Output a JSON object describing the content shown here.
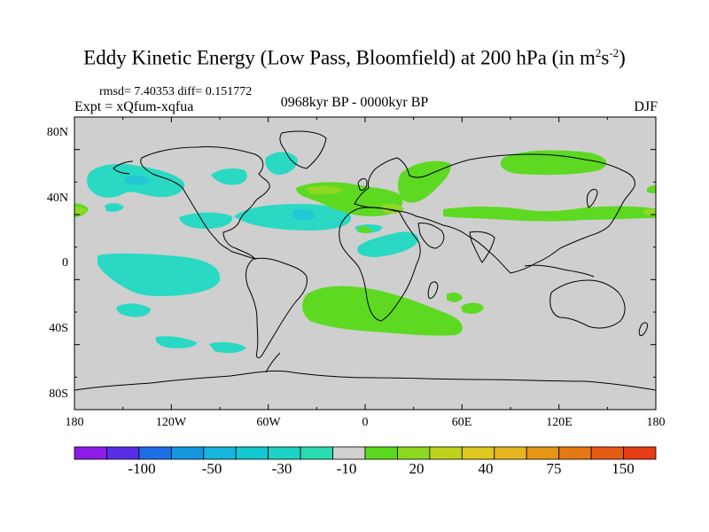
{
  "title": {
    "main": "Eddy Kinetic Energy (Low Pass, Bloomfield) at 200 hPa (in m",
    "sup1": "2",
    "mid": "s",
    "sup2": "-2",
    "end": ")"
  },
  "subtitle": {
    "stats": "rmsd= 7.40353 diff= 0.151772",
    "experiment": "Expt = xQfum-xqfua",
    "period": "0968kyr BP - 0000kyr BP",
    "season": "DJF"
  },
  "axes": {
    "lat_labels": [
      "80N",
      "40N",
      "0",
      "40S",
      "80S"
    ],
    "lon_labels": [
      "180",
      "120W",
      "60W",
      "0",
      "60E",
      "120E",
      "180"
    ]
  },
  "colorbar": {
    "labels": [
      "-100",
      "-50",
      "-30",
      "-10",
      "20",
      "40",
      "75",
      "150"
    ],
    "colors": [
      "#8c1ce6",
      "#5a2ee6",
      "#1e6ee6",
      "#1496e1",
      "#14b4dc",
      "#14c8d2",
      "#1ed2c3",
      "#28dcb0",
      "#cfcfcf",
      "#5ad81e",
      "#8cd81e",
      "#bed21e",
      "#dcc81e",
      "#e6b41e",
      "#e69614",
      "#e67814",
      "#e65a14",
      "#e63c14"
    ]
  },
  "map": {
    "background": "#cfcfcf",
    "negative_color": "#2ad9c3",
    "negative_dark_color": "#22c7d6",
    "positive_color": "#5ed922",
    "positive_light_color": "#90d823"
  }
}
